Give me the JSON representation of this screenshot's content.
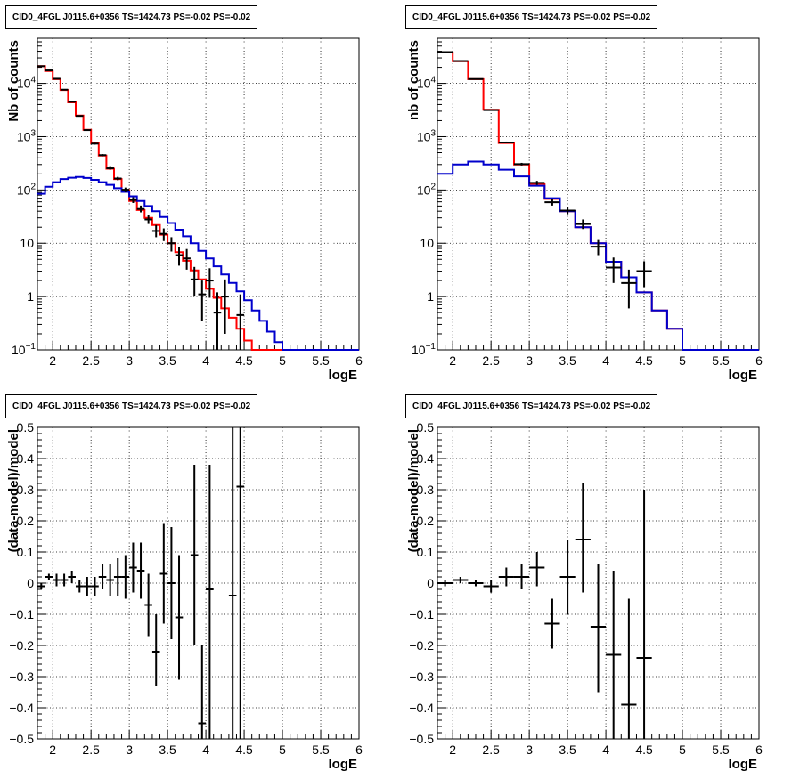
{
  "panels": [
    {
      "title": "CID0_4FGL J0115.6+0356 TS=1424.73 PS=-0.02 PS=-0.02"
    },
    {
      "title": "CID0_4FGL J0115.6+0356 TS=1424.73 PS=-0.02 PS=-0.02"
    },
    {
      "title": "CID0_4FGL J0115.6+0356 TS=1424.73 PS=-0.02 PS=-0.02"
    },
    {
      "title": "CID0_4FGL J0115.6+0356 TS=1424.73 PS=-0.02 PS=-0.02"
    }
  ],
  "colors": {
    "red": "#ff0000",
    "blue": "#0000cc",
    "black": "#000000",
    "grid": "#000000"
  },
  "chart_data": [
    {
      "type": "line",
      "title": "CID0_4FGL J0115.6+0356 TS=1424.73 PS=-0.02 PS=-0.02",
      "xlabel": "logE",
      "ylabel": "Nb of counts",
      "xlim": [
        1.8,
        6
      ],
      "ylim": [
        0.1,
        70000
      ],
      "yscale": "log",
      "grid": true,
      "x_ticks": [
        2,
        2.5,
        3,
        3.5,
        4,
        4.5,
        5,
        5.5,
        6
      ],
      "y_ticks": [
        {
          "v": 0.1,
          "label": "10",
          "sup": "−1"
        },
        {
          "v": 1,
          "label": "1",
          "sup": ""
        },
        {
          "v": 10,
          "label": "10",
          "sup": ""
        },
        {
          "v": 100,
          "label": "10",
          "sup": "2"
        },
        {
          "v": 1000,
          "label": "10",
          "sup": "3"
        },
        {
          "v": 10000,
          "label": "10",
          "sup": "4"
        }
      ],
      "bin_edges": [
        1.8,
        1.9,
        2.0,
        2.1,
        2.2,
        2.3,
        2.4,
        2.5,
        2.6,
        2.7,
        2.8,
        2.9,
        3.0,
        3.1,
        3.2,
        3.3,
        3.4,
        3.5,
        3.6,
        3.7,
        3.8,
        3.9,
        4.0,
        4.1,
        4.2,
        4.3,
        4.4,
        4.5,
        4.6,
        4.7,
        4.8,
        4.9,
        5.0,
        5.1,
        5.2,
        5.3,
        5.4,
        5.5,
        5.6,
        5.7,
        5.8,
        5.9,
        6.0
      ],
      "series": [
        {
          "color": "red",
          "values": [
            21000,
            17000,
            12000,
            7500,
            4400,
            2500,
            1350,
            750,
            440,
            250,
            160,
            100,
            62,
            42,
            30,
            22,
            14.5,
            10,
            6.8,
            4.7,
            3.1,
            2.1,
            1.4,
            0.95,
            0.6,
            0.4,
            0.25,
            0.15,
            0.1,
            0.1,
            0.1,
            0.1,
            0.1,
            0.1,
            0.1,
            0.1,
            0.1,
            0.1,
            0.1,
            0.1,
            0.1,
            0.1
          ]
        },
        {
          "color": "blue",
          "values": [
            85,
            115,
            140,
            160,
            170,
            175,
            168,
            155,
            140,
            125,
            108,
            92,
            76,
            62,
            50,
            40,
            31,
            24,
            18,
            13.5,
            10,
            7.2,
            5.2,
            3.7,
            2.6,
            1.8,
            1.25,
            0.85,
            0.55,
            0.35,
            0.22,
            0.14,
            0.1,
            0.1,
            0.1,
            0.1,
            0.1,
            0.1,
            0.1,
            0.1,
            0.1,
            0.1
          ]
        }
      ],
      "points": [
        {
          "x": 1.85,
          "xerr": 0.05,
          "y": 21000,
          "ylo": 20900,
          "yhi": 21100
        },
        {
          "x": 1.95,
          "xerr": 0.05,
          "y": 17500,
          "ylo": 17300,
          "yhi": 17700
        },
        {
          "x": 2.05,
          "xerr": 0.05,
          "y": 12200,
          "ylo": 12100,
          "yhi": 12300
        },
        {
          "x": 2.15,
          "xerr": 0.05,
          "y": 7600,
          "ylo": 7500,
          "yhi": 7700
        },
        {
          "x": 2.25,
          "xerr": 0.05,
          "y": 4500,
          "ylo": 4400,
          "yhi": 4600
        },
        {
          "x": 2.35,
          "xerr": 0.05,
          "y": 2450,
          "ylo": 2400,
          "yhi": 2500
        },
        {
          "x": 2.45,
          "xerr": 0.05,
          "y": 1330,
          "ylo": 1290,
          "yhi": 1370
        },
        {
          "x": 2.55,
          "xerr": 0.05,
          "y": 740,
          "ylo": 710,
          "yhi": 770
        },
        {
          "x": 2.65,
          "xerr": 0.05,
          "y": 450,
          "ylo": 430,
          "yhi": 470
        },
        {
          "x": 2.75,
          "xerr": 0.05,
          "y": 255,
          "ylo": 240,
          "yhi": 270
        },
        {
          "x": 2.85,
          "xerr": 0.05,
          "y": 164,
          "ylo": 152,
          "yhi": 176
        },
        {
          "x": 2.95,
          "xerr": 0.05,
          "y": 101,
          "ylo": 91,
          "yhi": 111
        },
        {
          "x": 3.05,
          "xerr": 0.05,
          "y": 65,
          "ylo": 57,
          "yhi": 73
        },
        {
          "x": 3.15,
          "xerr": 0.05,
          "y": 44,
          "ylo": 38,
          "yhi": 51
        },
        {
          "x": 3.25,
          "xerr": 0.05,
          "y": 28,
          "ylo": 23,
          "yhi": 34
        },
        {
          "x": 3.35,
          "xerr": 0.05,
          "y": 17,
          "ylo": 13,
          "yhi": 22
        },
        {
          "x": 3.45,
          "xerr": 0.05,
          "y": 15,
          "ylo": 11,
          "yhi": 19
        },
        {
          "x": 3.55,
          "xerr": 0.05,
          "y": 10,
          "ylo": 7,
          "yhi": 13
        },
        {
          "x": 3.65,
          "xerr": 0.05,
          "y": 6,
          "ylo": 3.8,
          "yhi": 8.5
        },
        {
          "x": 3.75,
          "xerr": 0.05,
          "y": 5.2,
          "ylo": 3.2,
          "yhi": 7.8
        },
        {
          "x": 3.85,
          "xerr": 0.05,
          "y": 2.1,
          "ylo": 1.0,
          "yhi": 3.6
        },
        {
          "x": 3.95,
          "xerr": 0.05,
          "y": 1.1,
          "ylo": 0.35,
          "yhi": 2.0
        },
        {
          "x": 4.05,
          "xerr": 0.05,
          "y": 2,
          "ylo": 0.95,
          "yhi": 3.4
        },
        {
          "x": 4.15,
          "xerr": 0.05,
          "y": 0.5,
          "ylo": 0.1,
          "yhi": 1.2
        },
        {
          "x": 4.25,
          "xerr": 0.05,
          "y": 1,
          "ylo": 0.2,
          "yhi": 2.1
        },
        {
          "x": 4.45,
          "xerr": 0.05,
          "y": 0.45,
          "ylo": 0.1,
          "yhi": 1.1
        }
      ]
    },
    {
      "type": "line",
      "title": "CID0_4FGL J0115.6+0356 TS=1424.73 PS=-0.02 PS=-0.02",
      "xlabel": "logE",
      "ylabel": "nb of counts",
      "xlim": [
        1.8,
        6
      ],
      "ylim": [
        0.1,
        70000
      ],
      "yscale": "log",
      "grid": true,
      "x_ticks": [
        2,
        2.5,
        3,
        3.5,
        4,
        4.5,
        5,
        5.5,
        6
      ],
      "y_ticks": [
        {
          "v": 0.1,
          "label": "10",
          "sup": "−1"
        },
        {
          "v": 1,
          "label": "1",
          "sup": ""
        },
        {
          "v": 10,
          "label": "10",
          "sup": ""
        },
        {
          "v": 100,
          "label": "10",
          "sup": "2"
        },
        {
          "v": 1000,
          "label": "10",
          "sup": "3"
        },
        {
          "v": 10000,
          "label": "10",
          "sup": "4"
        }
      ],
      "bin_edges": [
        1.8,
        2.0,
        2.2,
        2.4,
        2.6,
        2.8,
        3.0,
        3.2,
        3.4,
        3.6,
        3.8,
        4.0,
        4.2,
        4.4,
        4.6,
        4.8,
        5.0,
        5.2,
        5.4,
        5.6,
        5.8,
        6.0
      ],
      "series": [
        {
          "color": "red",
          "values": [
            38000,
            26000,
            12000,
            3200,
            760,
            300,
            130,
            68,
            40,
            20,
            10,
            4.5,
            2.3,
            1.2,
            0.55,
            0.25,
            0.1,
            0.1,
            0.1,
            0.1,
            0.1
          ]
        },
        {
          "color": "blue",
          "values": [
            200,
            300,
            340,
            300,
            240,
            180,
            120,
            70,
            40,
            20,
            10,
            4.5,
            2.3,
            1.2,
            0.55,
            0.25,
            0.1,
            0.1,
            0.1,
            0.1,
            0.1
          ]
        }
      ],
      "points": [
        {
          "x": 1.9,
          "xerr": 0.1,
          "y": 38500,
          "ylo": 38300,
          "yhi": 38700
        },
        {
          "x": 2.1,
          "xerr": 0.1,
          "y": 26200,
          "ylo": 26000,
          "yhi": 26400
        },
        {
          "x": 2.3,
          "xerr": 0.1,
          "y": 12050,
          "ylo": 11900,
          "yhi": 12200
        },
        {
          "x": 2.5,
          "xerr": 0.1,
          "y": 3150,
          "ylo": 3090,
          "yhi": 3210
        },
        {
          "x": 2.7,
          "xerr": 0.1,
          "y": 780,
          "ylo": 750,
          "yhi": 810
        },
        {
          "x": 2.9,
          "xerr": 0.1,
          "y": 305,
          "ylo": 288,
          "yhi": 322
        },
        {
          "x": 3.1,
          "xerr": 0.1,
          "y": 136,
          "ylo": 124,
          "yhi": 148
        },
        {
          "x": 3.3,
          "xerr": 0.1,
          "y": 59,
          "ylo": 51,
          "yhi": 67
        },
        {
          "x": 3.5,
          "xerr": 0.1,
          "y": 41,
          "ylo": 35,
          "yhi": 47
        },
        {
          "x": 3.7,
          "xerr": 0.1,
          "y": 23,
          "ylo": 18.5,
          "yhi": 28
        },
        {
          "x": 3.9,
          "xerr": 0.1,
          "y": 8.6,
          "ylo": 6,
          "yhi": 11.5
        },
        {
          "x": 4.1,
          "xerr": 0.1,
          "y": 3.5,
          "ylo": 1.8,
          "yhi": 5.4
        },
        {
          "x": 4.3,
          "xerr": 0.1,
          "y": 1.8,
          "ylo": 0.6,
          "yhi": 3.2
        },
        {
          "x": 4.5,
          "xerr": 0.1,
          "y": 3.0,
          "ylo": 1.5,
          "yhi": 4.6
        }
      ]
    },
    {
      "type": "scatter",
      "title": "CID0_4FGL J0115.6+0356 TS=1424.73 PS=-0.02 PS=-0.02",
      "xlabel": "logE",
      "ylabel": "(data-model)/model",
      "xlim": [
        1.8,
        6
      ],
      "ylim": [
        -0.5,
        0.5
      ],
      "grid": true,
      "x_ticks": [
        2,
        2.5,
        3,
        3.5,
        4,
        4.5,
        5,
        5.5,
        6
      ],
      "y_ticks": [
        {
          "v": -0.5,
          "label": "−0.5"
        },
        {
          "v": -0.4,
          "label": "−0.4"
        },
        {
          "v": -0.3,
          "label": "−0.3"
        },
        {
          "v": -0.2,
          "label": "−0.2"
        },
        {
          "v": -0.1,
          "label": "−0.1"
        },
        {
          "v": 0,
          "label": "0"
        },
        {
          "v": 0.1,
          "label": "0.1"
        },
        {
          "v": 0.2,
          "label": "0.2"
        },
        {
          "v": 0.3,
          "label": "0.3"
        },
        {
          "v": 0.4,
          "label": "0.4"
        },
        {
          "v": 0.5,
          "label": "0.5"
        }
      ],
      "points": [
        {
          "x": 1.85,
          "xerr": 0.05,
          "y": -0.01,
          "ylo": -0.02,
          "yhi": 0.0
        },
        {
          "x": 1.95,
          "xerr": 0.05,
          "y": 0.02,
          "ylo": 0.01,
          "yhi": 0.03
        },
        {
          "x": 2.05,
          "xerr": 0.05,
          "y": 0.01,
          "ylo": -0.01,
          "yhi": 0.03
        },
        {
          "x": 2.15,
          "xerr": 0.05,
          "y": 0.01,
          "ylo": -0.01,
          "yhi": 0.03
        },
        {
          "x": 2.25,
          "xerr": 0.05,
          "y": 0.02,
          "ylo": 0.0,
          "yhi": 0.04
        },
        {
          "x": 2.35,
          "xerr": 0.05,
          "y": -0.01,
          "ylo": -0.03,
          "yhi": 0.01
        },
        {
          "x": 2.45,
          "xerr": 0.05,
          "y": -0.01,
          "ylo": -0.04,
          "yhi": 0.02
        },
        {
          "x": 2.55,
          "xerr": 0.05,
          "y": -0.01,
          "ylo": -0.04,
          "yhi": 0.02
        },
        {
          "x": 2.65,
          "xerr": 0.05,
          "y": 0.02,
          "ylo": -0.02,
          "yhi": 0.06
        },
        {
          "x": 2.75,
          "xerr": 0.05,
          "y": 0.01,
          "ylo": -0.04,
          "yhi": 0.06
        },
        {
          "x": 2.85,
          "xerr": 0.05,
          "y": 0.02,
          "ylo": -0.04,
          "yhi": 0.08
        },
        {
          "x": 2.95,
          "xerr": 0.05,
          "y": 0.02,
          "ylo": -0.05,
          "yhi": 0.09
        },
        {
          "x": 3.05,
          "xerr": 0.05,
          "y": 0.05,
          "ylo": -0.03,
          "yhi": 0.13
        },
        {
          "x": 3.15,
          "xerr": 0.05,
          "y": 0.04,
          "ylo": -0.05,
          "yhi": 0.13
        },
        {
          "x": 3.25,
          "xerr": 0.05,
          "y": -0.07,
          "ylo": -0.17,
          "yhi": 0.03
        },
        {
          "x": 3.35,
          "xerr": 0.05,
          "y": -0.22,
          "ylo": -0.33,
          "yhi": -0.1
        },
        {
          "x": 3.45,
          "xerr": 0.05,
          "y": 0.03,
          "ylo": -0.13,
          "yhi": 0.19
        },
        {
          "x": 3.55,
          "xerr": 0.05,
          "y": 0.0,
          "ylo": -0.18,
          "yhi": 0.18
        },
        {
          "x": 3.65,
          "xerr": 0.05,
          "y": -0.11,
          "ylo": -0.31,
          "yhi": 0.09
        },
        {
          "x": 3.85,
          "xerr": 0.05,
          "y": 0.09,
          "ylo": -0.2,
          "yhi": 0.38
        },
        {
          "x": 3.95,
          "xerr": 0.05,
          "y": -0.45,
          "ylo": -0.5,
          "yhi": -0.2
        },
        {
          "x": 4.05,
          "xerr": 0.05,
          "y": -0.02,
          "ylo": -0.5,
          "yhi": 0.38
        },
        {
          "x": 4.35,
          "xerr": 0.05,
          "y": -0.04,
          "ylo": -0.5,
          "yhi": 0.5
        },
        {
          "x": 4.45,
          "xerr": 0.05,
          "y": 0.31,
          "ylo": -0.5,
          "yhi": 0.5
        }
      ]
    },
    {
      "type": "scatter",
      "title": "CID0_4FGL J0115.6+0356 TS=1424.73 PS=-0.02 PS=-0.02",
      "xlabel": "logE",
      "ylabel": "(data-model)/model",
      "xlim": [
        1.8,
        6
      ],
      "ylim": [
        -0.5,
        0.5
      ],
      "grid": true,
      "x_ticks": [
        2,
        2.5,
        3,
        3.5,
        4,
        4.5,
        5,
        5.5,
        6
      ],
      "y_ticks": [
        {
          "v": -0.5,
          "label": "−0.5"
        },
        {
          "v": -0.4,
          "label": "−0.4"
        },
        {
          "v": -0.3,
          "label": "−0.3"
        },
        {
          "v": -0.2,
          "label": "−0.2"
        },
        {
          "v": -0.1,
          "label": "−0.1"
        },
        {
          "v": 0,
          "label": "0"
        },
        {
          "v": 0.1,
          "label": "0.1"
        },
        {
          "v": 0.2,
          "label": "0.2"
        },
        {
          "v": 0.3,
          "label": "0.3"
        },
        {
          "v": 0.4,
          "label": "0.4"
        },
        {
          "v": 0.5,
          "label": "0.5"
        }
      ],
      "points": [
        {
          "x": 1.9,
          "xerr": 0.1,
          "y": 0.0,
          "ylo": -0.01,
          "yhi": 0.01
        },
        {
          "x": 2.1,
          "xerr": 0.1,
          "y": 0.01,
          "ylo": 0.0,
          "yhi": 0.02
        },
        {
          "x": 2.3,
          "xerr": 0.1,
          "y": 0.0,
          "ylo": -0.01,
          "yhi": 0.01
        },
        {
          "x": 2.5,
          "xerr": 0.1,
          "y": -0.01,
          "ylo": -0.03,
          "yhi": 0.01
        },
        {
          "x": 2.7,
          "xerr": 0.1,
          "y": 0.02,
          "ylo": -0.01,
          "yhi": 0.05
        },
        {
          "x": 2.9,
          "xerr": 0.1,
          "y": 0.02,
          "ylo": -0.02,
          "yhi": 0.06
        },
        {
          "x": 3.1,
          "xerr": 0.1,
          "y": 0.05,
          "ylo": -0.01,
          "yhi": 0.1
        },
        {
          "x": 3.3,
          "xerr": 0.1,
          "y": -0.13,
          "ylo": -0.21,
          "yhi": -0.05
        },
        {
          "x": 3.5,
          "xerr": 0.1,
          "y": 0.02,
          "ylo": -0.1,
          "yhi": 0.14
        },
        {
          "x": 3.7,
          "xerr": 0.1,
          "y": 0.14,
          "ylo": -0.03,
          "yhi": 0.32
        },
        {
          "x": 3.9,
          "xerr": 0.1,
          "y": -0.14,
          "ylo": -0.35,
          "yhi": 0.06
        },
        {
          "x": 4.1,
          "xerr": 0.1,
          "y": -0.23,
          "ylo": -0.5,
          "yhi": 0.04
        },
        {
          "x": 4.3,
          "xerr": 0.1,
          "y": -0.39,
          "ylo": -0.5,
          "yhi": -0.05
        },
        {
          "x": 4.5,
          "xerr": 0.1,
          "y": -0.24,
          "ylo": -0.5,
          "yhi": 0.3
        }
      ]
    }
  ]
}
